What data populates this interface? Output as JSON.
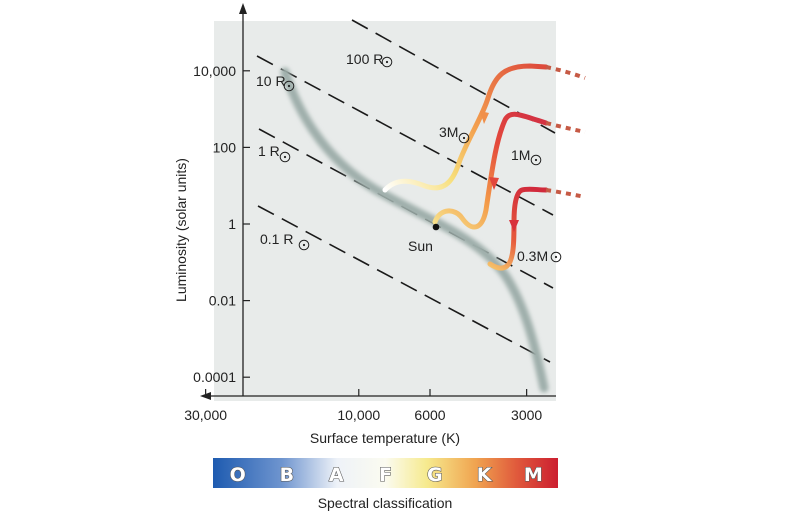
{
  "chart_data": {
    "type": "line",
    "xlabel": "Surface temperature (K)",
    "ylabel": "Luminosity (solar units)",
    "x_scale": "log",
    "x_axis_reversed": true,
    "y_scale": "log",
    "x_ticks": [
      {
        "value": 30000,
        "label": "30,000"
      },
      {
        "value": 10000,
        "label": "10,000"
      },
      {
        "value": 6000,
        "label": "6000"
      },
      {
        "value": 3000,
        "label": "3000"
      }
    ],
    "y_ticks": [
      {
        "value": 10000,
        "label": "10,000"
      },
      {
        "value": 100,
        "label": "100"
      },
      {
        "value": 1,
        "label": "1"
      },
      {
        "value": 0.01,
        "label": "0.01"
      },
      {
        "value": 0.0001,
        "label": "0.0001"
      }
    ],
    "radius_lines": [
      {
        "label": "100 R",
        "radius": 100
      },
      {
        "label": "10 R",
        "radius": 10
      },
      {
        "label": "1 R",
        "radius": 1
      },
      {
        "label": "0.1 R",
        "radius": 0.1
      }
    ],
    "sun": {
      "label": "Sun",
      "temperature": 5800,
      "luminosity": 1
    },
    "evolution_tracks": [
      {
        "name": "3M",
        "mass": 3
      },
      {
        "name": "1M",
        "mass": 1
      },
      {
        "name": "0.3M",
        "mass": 0.3
      }
    ],
    "spectral_classes": [
      "O",
      "B",
      "A",
      "F",
      "G",
      "K",
      "M"
    ],
    "spectral_title": "Spectral classification"
  },
  "colors": {
    "plot_background": "#e8ebea",
    "main_sequence": "#9fafab",
    "track_hot": "#f1a150",
    "track_mid": "#e25a3a",
    "track_red": "#cf2b3a",
    "track_dotted": "#c65a45"
  }
}
